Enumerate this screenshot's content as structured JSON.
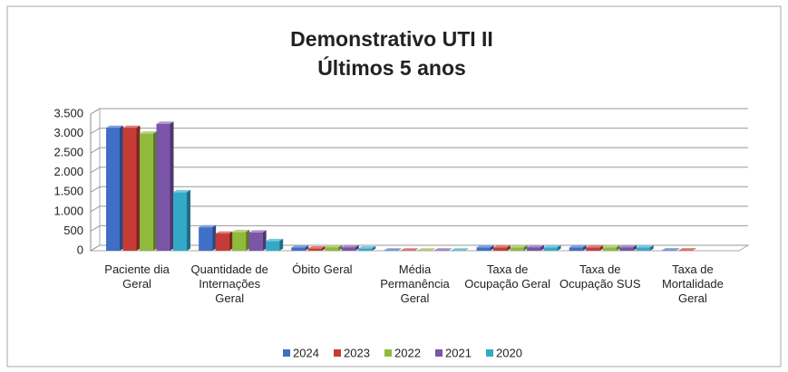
{
  "chart_data": {
    "type": "bar3d",
    "title": "Demonstrativo UTI II",
    "subtitle": "Últimos 5 anos",
    "categories": [
      "Paciente dia Geral",
      "Quantidade de Internações Geral",
      "Óbito Geral",
      "Média Permanência Geral",
      "Taxa de Ocupação Geral",
      "Taxa de Ocupação SUS",
      "Taxa de Mortalidade Geral"
    ],
    "series": [
      {
        "name": "2024",
        "color": "#3f6fc6",
        "values": [
          3150,
          600,
          80,
          9,
          85,
          85,
          10
        ]
      },
      {
        "name": "2023",
        "color": "#c63b36",
        "values": [
          3150,
          440,
          60,
          9,
          80,
          80,
          10
        ]
      },
      {
        "name": "2022",
        "color": "#8fba3c",
        "values": [
          3000,
          480,
          90,
          9,
          85,
          85,
          null
        ]
      },
      {
        "name": "2021",
        "color": "#7a55a8",
        "values": [
          3250,
          470,
          90,
          9,
          90,
          90,
          null
        ]
      },
      {
        "name": "2020",
        "color": "#33a9c9",
        "values": [
          1500,
          250,
          60,
          9,
          85,
          85,
          null
        ]
      }
    ],
    "ylim": [
      0,
      3500
    ],
    "yticks": [
      0,
      500,
      {
        "value": 1000,
        "label": "1.000"
      },
      {
        "value": 1500,
        "label": "1.500"
      },
      {
        "value": 2000,
        "label": "2.000"
      },
      {
        "value": 2500,
        "label": "2.500"
      },
      {
        "value": 3000,
        "label": "3.000"
      },
      {
        "value": 3500,
        "label": "3.500"
      }
    ],
    "grid": true,
    "legend": "bottom"
  }
}
